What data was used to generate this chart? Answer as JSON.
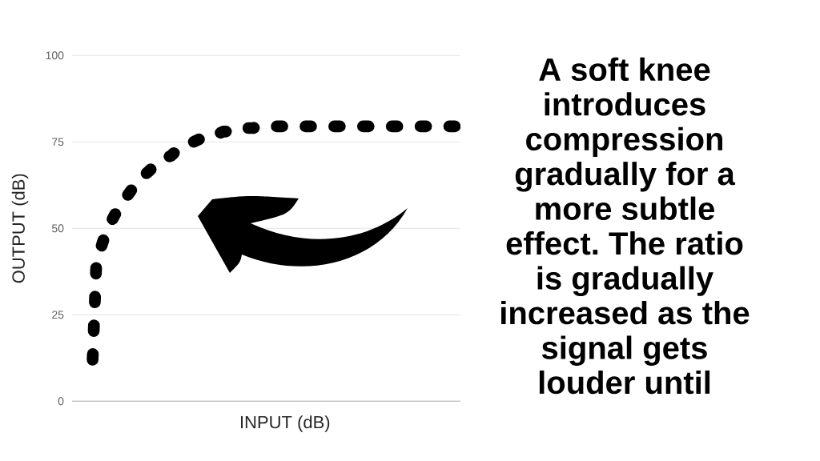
{
  "chart_data": {
    "type": "line",
    "xlabel": "INPUT (dB)",
    "ylabel": "OUTPUT (dB)",
    "annotations": [
      "A soft knee introduces compression gradually for a more subtle effect. The ratio is gradually increased as the signal gets louder until"
    ],
    "categories": [
      null,
      null,
      null,
      null,
      null,
      null,
      null,
      null,
      null,
      null,
      null,
      null,
      null,
      null,
      null,
      null,
      null,
      null,
      null,
      null,
      null,
      null,
      null,
      null,
      null,
      null,
      null,
      null,
      null,
      null,
      null,
      null,
      null,
      null,
      null,
      null,
      null,
      null,
      null,
      null,
      null,
      null,
      null,
      null,
      null,
      null,
      null,
      null,
      null,
      null,
      null,
      null,
      null,
      null,
      null,
      null,
      null,
      null,
      null,
      null,
      null,
      null,
      null,
      null,
      null,
      null,
      null,
      null,
      null,
      null,
      null,
      null,
      null,
      null,
      null,
      null,
      null,
      null,
      null,
      null,
      null,
      null,
      null,
      null,
      null,
      null,
      null,
      null,
      null,
      null,
      null,
      null,
      null,
      null,
      null,
      null,
      null,
      null,
      null,
      null,
      null,
      null,
      null,
      null
    ],
    "values": [
      null,
      null,
      null,
      null,
      null,
      12,
      40,
      43.5,
      47,
      49.5,
      52,
      54,
      56,
      57.5,
      59,
      60.5,
      62,
      63,
      64.5,
      65.5,
      66.5,
      67.5,
      68,
      69,
      69.5,
      70.5,
      71,
      72,
      72.5,
      73,
      73.5,
      74,
      75,
      75.5,
      76,
      76.5,
      77,
      77,
      77.5,
      77.5,
      78,
      78,
      78.5,
      78.5,
      78.5,
      79,
      79,
      79,
      79,
      79.5,
      79.5,
      79.5,
      79.5,
      79.5,
      79.5,
      79.5,
      79.5,
      79.5,
      79.5,
      79.5,
      79.5,
      79.5,
      79.5,
      79.5,
      79.5,
      79.5,
      79.5,
      79.5,
      79.5,
      79.5,
      79.5,
      79.5,
      79.5,
      79.5,
      79.5,
      79.5,
      79.5,
      79.5,
      79.5,
      79.5,
      79.5,
      79.5,
      79.5,
      79.5,
      79.5,
      79.5,
      79.5,
      79.5,
      79.5,
      79.5,
      79.5,
      79.5,
      79.5,
      79.5,
      79.5,
      79.5,
      79.5,
      79.5,
      79.5,
      79.5,
      79.5,
      79.5,
      79.5,
      null
    ],
    "color": "#000000",
    "line_style": "dashed",
    "ylim": [
      0,
      100
    ],
    "yticks": [
      0,
      25,
      50,
      75,
      100
    ],
    "grid": "y"
  }
}
